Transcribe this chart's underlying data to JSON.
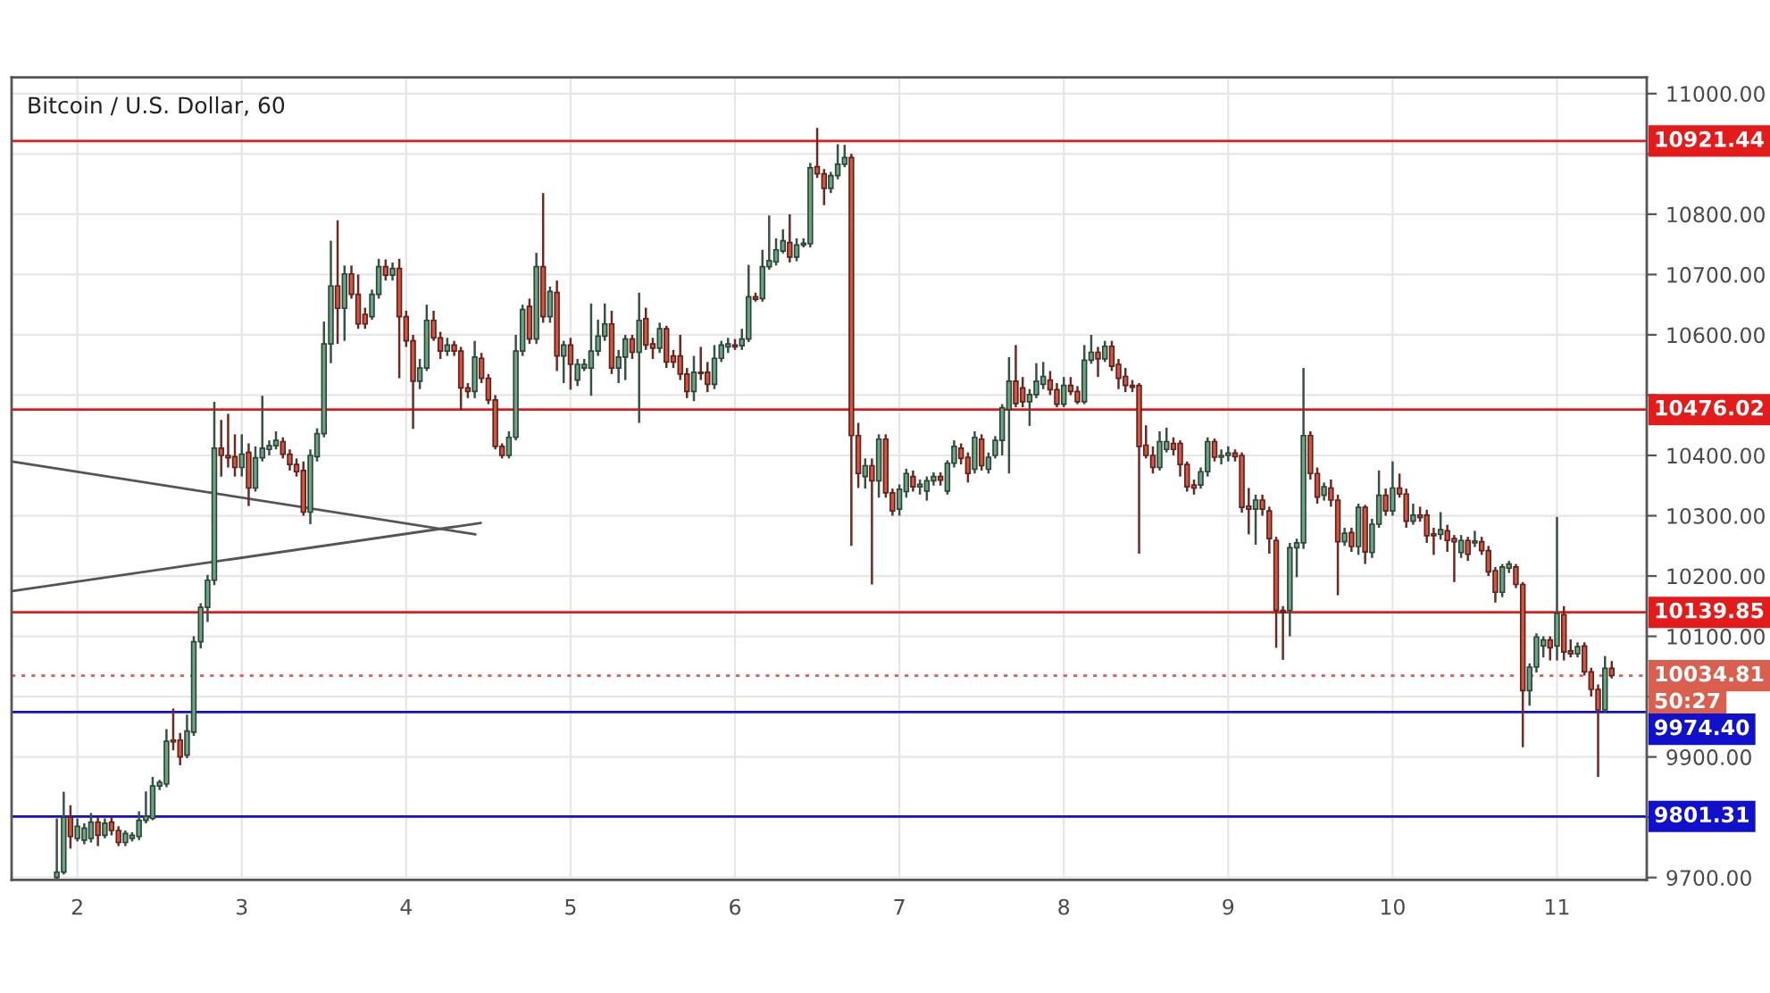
{
  "chart_data": {
    "type": "candlestick",
    "title": "Bitcoin / U.S. Dollar, 60",
    "x": [
      1.875,
      1.917,
      1.958,
      2,
      2.042,
      2.083,
      2.125,
      2.167,
      2.208,
      2.25,
      2.292,
      2.333,
      2.375,
      2.417,
      2.458,
      2.5,
      2.542,
      2.583,
      2.625,
      2.667,
      2.708,
      2.75,
      2.792,
      2.833,
      2.875,
      2.917,
      2.958,
      3,
      3.042,
      3.083,
      3.125,
      3.167,
      3.208,
      3.25,
      3.292,
      3.333,
      3.375,
      3.417,
      3.458,
      3.5,
      3.542,
      3.583,
      3.625,
      3.667,
      3.708,
      3.75,
      3.792,
      3.833,
      3.875,
      3.917,
      3.958,
      4,
      4.042,
      4.083,
      4.125,
      4.167,
      4.208,
      4.25,
      4.292,
      4.333,
      4.375,
      4.417,
      4.458,
      4.5,
      4.542,
      4.583,
      4.625,
      4.667,
      4.708,
      4.75,
      4.792,
      4.833,
      4.875,
      4.917,
      4.958,
      5,
      5.042,
      5.083,
      5.125,
      5.167,
      5.208,
      5.25,
      5.292,
      5.333,
      5.375,
      5.417,
      5.458,
      5.5,
      5.542,
      5.583,
      5.625,
      5.667,
      5.708,
      5.75,
      5.792,
      5.833,
      5.875,
      5.917,
      5.958,
      6,
      6.042,
      6.083,
      6.125,
      6.167,
      6.208,
      6.25,
      6.292,
      6.333,
      6.375,
      6.417,
      6.458,
      6.5,
      6.542,
      6.583,
      6.625,
      6.667,
      6.708,
      6.75,
      6.792,
      6.833,
      6.875,
      6.917,
      6.958,
      7,
      7.042,
      7.083,
      7.125,
      7.167,
      7.208,
      7.25,
      7.292,
      7.333,
      7.375,
      7.417,
      7.458,
      7.5,
      7.542,
      7.583,
      7.625,
      7.667,
      7.708,
      7.75,
      7.792,
      7.833,
      7.875,
      7.917,
      7.958,
      8,
      8.042,
      8.083,
      8.125,
      8.167,
      8.208,
      8.25,
      8.292,
      8.333,
      8.375,
      8.417,
      8.458,
      8.5,
      8.542,
      8.583,
      8.625,
      8.667,
      8.708,
      8.75,
      8.792,
      8.833,
      8.875,
      8.917,
      8.958,
      9,
      9.042,
      9.083,
      9.125,
      9.167,
      9.208,
      9.25,
      9.292,
      9.333,
      9.375,
      9.417,
      9.458,
      9.5,
      9.542,
      9.583,
      9.625,
      9.667,
      9.708,
      9.75,
      9.792,
      9.833,
      9.875,
      9.917,
      9.958,
      10,
      10.042,
      10.083,
      10.125,
      10.167,
      10.208,
      10.25,
      10.292,
      10.333,
      10.375,
      10.417,
      10.458,
      10.5,
      10.542,
      10.583,
      10.625,
      10.667,
      10.708,
      10.75,
      10.792,
      10.833,
      10.875,
      10.917,
      10.958,
      11,
      11.042,
      11.083,
      11.125,
      11.167,
      11.208,
      11.25,
      11.292,
      11.333
    ],
    "ohlc": [
      [
        9700,
        9798,
        9698,
        9709
      ],
      [
        9709,
        9842,
        9705,
        9800
      ],
      [
        9800,
        9820,
        9748,
        9768
      ],
      [
        9765,
        9798,
        9760,
        9785
      ],
      [
        9762,
        9790,
        9755,
        9782
      ],
      [
        9765,
        9807,
        9758,
        9792
      ],
      [
        9792,
        9800,
        9752,
        9770
      ],
      [
        9770,
        9798,
        9765,
        9790
      ],
      [
        9792,
        9800,
        9770,
        9778
      ],
      [
        9778,
        9785,
        9752,
        9758
      ],
      [
        9758,
        9778,
        9752,
        9773
      ],
      [
        9765,
        9775,
        9760,
        9770
      ],
      [
        9768,
        9810,
        9762,
        9795
      ],
      [
        9795,
        9843,
        9790,
        9802
      ],
      [
        9798,
        9867,
        9795,
        9852
      ],
      [
        9852,
        9862,
        9845,
        9858
      ],
      [
        9855,
        9946,
        9850,
        9926
      ],
      [
        9928,
        9980,
        9911,
        9925
      ],
      [
        9928,
        9940,
        9886,
        9900
      ],
      [
        9903,
        9970,
        9898,
        9943
      ],
      [
        9941,
        10100,
        9935,
        10091
      ],
      [
        10091,
        10155,
        10080,
        10148
      ],
      [
        10148,
        10202,
        10124,
        10193
      ],
      [
        10193,
        10489,
        10185,
        10412
      ],
      [
        10412,
        10459,
        10365,
        10400
      ],
      [
        10400,
        10469,
        10380,
        10396
      ],
      [
        10398,
        10435,
        10365,
        10380
      ],
      [
        10380,
        10435,
        10365,
        10402
      ],
      [
        10405,
        10420,
        10316,
        10346
      ],
      [
        10346,
        10415,
        10340,
        10396
      ],
      [
        10396,
        10499,
        10390,
        10412
      ],
      [
        10410,
        10425,
        10400,
        10416
      ],
      [
        10416,
        10440,
        10410,
        10425
      ],
      [
        10423,
        10430,
        10395,
        10402
      ],
      [
        10402,
        10410,
        10375,
        10385
      ],
      [
        10385,
        10395,
        10365,
        10373
      ],
      [
        10375,
        10390,
        10300,
        10306
      ],
      [
        10306,
        10410,
        10286,
        10400
      ],
      [
        10398,
        10445,
        10390,
        10436
      ],
      [
        10436,
        10622,
        10430,
        10585
      ],
      [
        10585,
        10756,
        10553,
        10681
      ],
      [
        10681,
        10790,
        10585,
        10644
      ],
      [
        10644,
        10715,
        10590,
        10701
      ],
      [
        10701,
        10715,
        10660,
        10667
      ],
      [
        10667,
        10700,
        10610,
        10618
      ],
      [
        10634,
        10645,
        10610,
        10618
      ],
      [
        10630,
        10675,
        10625,
        10667
      ],
      [
        10667,
        10726,
        10660,
        10713
      ],
      [
        10713,
        10725,
        10690,
        10699
      ],
      [
        10699,
        10720,
        10690,
        10710
      ],
      [
        10710,
        10726,
        10528,
        10630
      ],
      [
        10630,
        10640,
        10580,
        10590
      ],
      [
        10590,
        10600,
        10444,
        10523
      ],
      [
        10523,
        10560,
        10510,
        10545
      ],
      [
        10545,
        10650,
        10540,
        10624
      ],
      [
        10624,
        10640,
        10590,
        10595
      ],
      [
        10595,
        10605,
        10560,
        10573
      ],
      [
        10573,
        10595,
        10565,
        10583
      ],
      [
        10583,
        10590,
        10565,
        10573
      ],
      [
        10573,
        10580,
        10474,
        10512
      ],
      [
        10512,
        10520,
        10495,
        10506
      ],
      [
        10506,
        10590,
        10495,
        10563
      ],
      [
        10561,
        10570,
        10520,
        10528
      ],
      [
        10528,
        10535,
        10485,
        10492
      ],
      [
        10492,
        10500,
        10410,
        10415
      ],
      [
        10415,
        10420,
        10395,
        10400
      ],
      [
        10400,
        10440,
        10395,
        10430
      ],
      [
        10430,
        10600,
        10425,
        10573
      ],
      [
        10573,
        10650,
        10565,
        10642
      ],
      [
        10647,
        10660,
        10585,
        10593
      ],
      [
        10593,
        10736,
        10585,
        10713
      ],
      [
        10713,
        10835,
        10620,
        10630
      ],
      [
        10630,
        10680,
        10620,
        10672
      ],
      [
        10670,
        10690,
        10540,
        10565
      ],
      [
        10565,
        10590,
        10520,
        10583
      ],
      [
        10583,
        10595,
        10509,
        10551
      ],
      [
        10525,
        10560,
        10515,
        10551
      ],
      [
        10545,
        10560,
        10540,
        10551
      ],
      [
        10545,
        10652,
        10499,
        10573
      ],
      [
        10573,
        10625,
        10565,
        10598
      ],
      [
        10598,
        10652,
        10590,
        10618
      ],
      [
        10618,
        10640,
        10535,
        10545
      ],
      [
        10545,
        10575,
        10520,
        10563
      ],
      [
        10563,
        10600,
        10525,
        10593
      ],
      [
        10593,
        10600,
        10560,
        10571
      ],
      [
        10571,
        10670,
        10454,
        10624
      ],
      [
        10627,
        10645,
        10575,
        10583
      ],
      [
        10585,
        10595,
        10560,
        10578
      ],
      [
        10578,
        10620,
        10570,
        10610
      ],
      [
        10610,
        10615,
        10545,
        10555
      ],
      [
        10565,
        10575,
        10545,
        10555
      ],
      [
        10565,
        10600,
        10525,
        10535
      ],
      [
        10535,
        10545,
        10495,
        10506
      ],
      [
        10506,
        10565,
        10490,
        10538
      ],
      [
        10538,
        10580,
        10525,
        10536
      ],
      [
        10538,
        10555,
        10505,
        10518
      ],
      [
        10518,
        10583,
        10510,
        10561
      ],
      [
        10561,
        10590,
        10555,
        10583
      ],
      [
        10580,
        10595,
        10570,
        10585
      ],
      [
        10583,
        10593,
        10575,
        10580
      ],
      [
        10582,
        10610,
        10575,
        10593
      ],
      [
        10593,
        10716,
        10588,
        10663
      ],
      [
        10663,
        10670,
        10655,
        10659
      ],
      [
        10660,
        10741,
        10655,
        10713
      ],
      [
        10713,
        10798,
        10708,
        10723
      ],
      [
        10721,
        10760,
        10715,
        10741
      ],
      [
        10739,
        10775,
        10735,
        10756
      ],
      [
        10753,
        10800,
        10720,
        10729
      ],
      [
        10729,
        10760,
        10722,
        10749
      ],
      [
        10749,
        10760,
        10745,
        10752
      ],
      [
        10751,
        10885,
        10745,
        10877
      ],
      [
        10879,
        10943,
        10860,
        10867
      ],
      [
        10867,
        10875,
        10815,
        10843
      ],
      [
        10843,
        10870,
        10835,
        10864
      ],
      [
        10864,
        10916,
        10858,
        10883
      ],
      [
        10883,
        10915,
        10878,
        10894
      ],
      [
        10894,
        10900,
        10250,
        10433
      ],
      [
        10433,
        10454,
        10346,
        10370
      ],
      [
        10365,
        10395,
        10345,
        10383
      ],
      [
        10383,
        10395,
        10186,
        10358
      ],
      [
        10358,
        10435,
        10330,
        10427
      ],
      [
        10427,
        10435,
        10330,
        10338
      ],
      [
        10338,
        10345,
        10300,
        10308
      ],
      [
        10311,
        10352,
        10300,
        10344
      ],
      [
        10340,
        10378,
        10330,
        10370
      ],
      [
        10365,
        10375,
        10340,
        10348
      ],
      [
        10348,
        10360,
        10335,
        10352
      ],
      [
        10341,
        10365,
        10325,
        10358
      ],
      [
        10358,
        10372,
        10350,
        10365
      ],
      [
        10365,
        10372,
        10350,
        10359
      ],
      [
        10341,
        10392,
        10335,
        10387
      ],
      [
        10387,
        10425,
        10380,
        10415
      ],
      [
        10412,
        10420,
        10385,
        10395
      ],
      [
        10397,
        10405,
        10355,
        10370
      ],
      [
        10377,
        10440,
        10370,
        10430
      ],
      [
        10427,
        10435,
        10375,
        10383
      ],
      [
        10377,
        10405,
        10370,
        10397
      ],
      [
        10400,
        10432,
        10395,
        10425
      ],
      [
        10425,
        10485,
        10400,
        10479
      ],
      [
        10476,
        10563,
        10370,
        10523
      ],
      [
        10523,
        10583,
        10480,
        10486
      ],
      [
        10512,
        10530,
        10480,
        10489
      ],
      [
        10489,
        10510,
        10449,
        10501
      ],
      [
        10501,
        10553,
        10495,
        10523
      ],
      [
        10518,
        10555,
        10510,
        10531
      ],
      [
        10525,
        10540,
        10500,
        10509
      ],
      [
        10509,
        10520,
        10480,
        10485
      ],
      [
        10485,
        10530,
        10480,
        10516
      ],
      [
        10516,
        10530,
        10500,
        10506
      ],
      [
        10506,
        10515,
        10485,
        10489
      ],
      [
        10489,
        10583,
        10485,
        10558
      ],
      [
        10558,
        10600,
        10552,
        10571
      ],
      [
        10571,
        10580,
        10530,
        10560
      ],
      [
        10560,
        10590,
        10555,
        10581
      ],
      [
        10581,
        10590,
        10540,
        10548
      ],
      [
        10551,
        10560,
        10510,
        10528
      ],
      [
        10531,
        10545,
        10505,
        10516
      ],
      [
        10516,
        10525,
        10505,
        10513
      ],
      [
        10516,
        10520,
        10237,
        10415
      ],
      [
        10417,
        10450,
        10395,
        10400
      ],
      [
        10400,
        10415,
        10370,
        10380
      ],
      [
        10380,
        10440,
        10375,
        10423
      ],
      [
        10410,
        10446,
        10405,
        10423
      ],
      [
        10420,
        10430,
        10400,
        10410
      ],
      [
        10420,
        10425,
        10365,
        10385
      ],
      [
        10385,
        10390,
        10340,
        10348
      ],
      [
        10351,
        10360,
        10335,
        10346
      ],
      [
        10351,
        10380,
        10345,
        10373
      ],
      [
        10373,
        10430,
        10365,
        10423
      ],
      [
        10423,
        10428,
        10390,
        10397
      ],
      [
        10397,
        10410,
        10385,
        10400
      ],
      [
        10400,
        10415,
        10390,
        10404
      ],
      [
        10404,
        10410,
        10390,
        10398
      ],
      [
        10400,
        10405,
        10305,
        10314
      ],
      [
        10316,
        10346,
        10269,
        10311
      ],
      [
        10311,
        10335,
        10252,
        10326
      ],
      [
        10326,
        10335,
        10300,
        10311
      ],
      [
        10308,
        10315,
        10237,
        10262
      ],
      [
        10259,
        10265,
        10081,
        10143
      ],
      [
        10143,
        10150,
        10061,
        10140
      ],
      [
        10143,
        10255,
        10100,
        10247
      ],
      [
        10247,
        10262,
        10198,
        10255
      ],
      [
        10255,
        10545,
        10245,
        10433
      ],
      [
        10433,
        10440,
        10360,
        10370
      ],
      [
        10370,
        10380,
        10320,
        10331
      ],
      [
        10334,
        10355,
        10325,
        10348
      ],
      [
        10346,
        10360,
        10315,
        10326
      ],
      [
        10326,
        10335,
        10168,
        10257
      ],
      [
        10257,
        10280,
        10250,
        10271
      ],
      [
        10272,
        10280,
        10240,
        10249
      ],
      [
        10249,
        10320,
        10235,
        10314
      ],
      [
        10314,
        10318,
        10220,
        10240
      ],
      [
        10239,
        10295,
        10230,
        10286
      ],
      [
        10286,
        10375,
        10280,
        10334
      ],
      [
        10334,
        10345,
        10300,
        10308
      ],
      [
        10308,
        10390,
        10300,
        10346
      ],
      [
        10346,
        10370,
        10330,
        10336
      ],
      [
        10336,
        10345,
        10280,
        10291
      ],
      [
        10291,
        10320,
        10285,
        10301
      ],
      [
        10301,
        10315,
        10290,
        10297
      ],
      [
        10301,
        10310,
        10255,
        10267
      ],
      [
        10270,
        10280,
        10235,
        10267
      ],
      [
        10269,
        10306,
        10260,
        10277
      ],
      [
        10275,
        10285,
        10240,
        10259
      ],
      [
        10262,
        10268,
        10190,
        10257
      ],
      [
        10239,
        10268,
        10230,
        10259
      ],
      [
        10259,
        10265,
        10225,
        10236
      ],
      [
        10255,
        10275,
        10248,
        10258
      ],
      [
        10257,
        10265,
        10235,
        10242
      ],
      [
        10242,
        10250,
        10200,
        10207
      ],
      [
        10209,
        10215,
        10156,
        10173
      ],
      [
        10173,
        10220,
        10165,
        10215
      ],
      [
        10213,
        10225,
        10205,
        10220
      ],
      [
        10215,
        10220,
        10180,
        10186
      ],
      [
        10186,
        10190,
        9916,
        10010
      ],
      [
        10010,
        10055,
        9985,
        10049
      ],
      [
        10049,
        10105,
        10040,
        10099
      ],
      [
        10084,
        10100,
        10065,
        10094
      ],
      [
        10094,
        10100,
        10060,
        10081
      ],
      [
        10084,
        10298,
        10060,
        10138
      ],
      [
        10136,
        10150,
        10060,
        10074
      ],
      [
        10076,
        10095,
        10065,
        10071
      ],
      [
        10071,
        10090,
        10065,
        10083
      ],
      [
        10084,
        10090,
        10035,
        10041
      ],
      [
        10041,
        10048,
        10000,
        10012
      ],
      [
        10012,
        10020,
        9867,
        9978
      ],
      [
        9978,
        10067,
        9974,
        10047
      ],
      [
        10047,
        10059,
        10030,
        10035
      ]
    ],
    "colors": [
      "#6ba583",
      "#6ba583",
      "#d75442",
      "#6ba583",
      "#6ba583",
      "#6ba583",
      "#d75442",
      "#6ba583",
      "#d75442",
      "#d75442",
      "#6ba583",
      "#6ba583",
      "#6ba583",
      "#6ba583",
      "#6ba583",
      "#6ba583",
      "#6ba583",
      "#d75442",
      "#d75442",
      "#6ba583",
      "#6ba583",
      "#6ba583",
      "#6ba583",
      "#6ba583",
      "#d75442",
      "#d75442",
      "#d75442",
      "#6ba583",
      "#d75442",
      "#6ba583",
      "#6ba583",
      "#6ba583",
      "#6ba583",
      "#d75442",
      "#d75442",
      "#d75442",
      "#d75442",
      "#6ba583",
      "#6ba583",
      "#6ba583",
      "#6ba583",
      "#d75442",
      "#6ba583",
      "#d75442",
      "#d75442",
      "#d75442",
      "#6ba583",
      "#6ba583",
      "#d75442",
      "#6ba583",
      "#d75442",
      "#d75442",
      "#d75442",
      "#6ba583",
      "#6ba583",
      "#d75442",
      "#d75442",
      "#6ba583",
      "#d75442",
      "#d75442",
      "#d75442",
      "#6ba583",
      "#d75442",
      "#d75442",
      "#d75442",
      "#d75442",
      "#6ba583",
      "#6ba583",
      "#6ba583",
      "#d75442",
      "#6ba583",
      "#d75442",
      "#6ba583",
      "#d75442",
      "#6ba583",
      "#d75442",
      "#6ba583",
      "#6ba583",
      "#6ba583",
      "#6ba583",
      "#6ba583",
      "#d75442",
      "#6ba583",
      "#6ba583",
      "#d75442",
      "#6ba583",
      "#d75442",
      "#d75442",
      "#6ba583",
      "#d75442",
      "#d75442",
      "#d75442",
      "#d75442",
      "#6ba583",
      "#d75442",
      "#d75442",
      "#6ba583",
      "#6ba583",
      "#6ba583",
      "#d75442",
      "#6ba583",
      "#6ba583",
      "#d75442",
      "#6ba583",
      "#6ba583",
      "#6ba583",
      "#6ba583",
      "#d75442",
      "#6ba583",
      "#6ba583",
      "#6ba583",
      "#d75442",
      "#d75442",
      "#6ba583",
      "#6ba583",
      "#6ba583",
      "#d75442",
      "#d75442",
      "#6ba583",
      "#d75442",
      "#6ba583",
      "#d75442",
      "#d75442",
      "#6ba583",
      "#6ba583",
      "#d75442",
      "#6ba583",
      "#6ba583",
      "#6ba583",
      "#d75442",
      "#6ba583",
      "#6ba583",
      "#d75442",
      "#d75442",
      "#6ba583",
      "#d75442",
      "#6ba583",
      "#6ba583",
      "#6ba583",
      "#6ba583",
      "#d75442",
      "#d75442",
      "#6ba583",
      "#6ba583",
      "#6ba583",
      "#d75442",
      "#d75442",
      "#6ba583",
      "#d75442",
      "#d75442",
      "#6ba583",
      "#6ba583",
      "#d75442",
      "#6ba583",
      "#d75442",
      "#d75442",
      "#d75442",
      "#d75442",
      "#d75442",
      "#d75442",
      "#d75442",
      "#6ba583",
      "#6ba583",
      "#d75442",
      "#d75442",
      "#d75442",
      "#d75442",
      "#6ba583",
      "#6ba583",
      "#d75442",
      "#6ba583",
      "#6ba583",
      "#d75442",
      "#d75442",
      "#d75442",
      "#6ba583",
      "#d75442",
      "#d75442",
      "#d75442",
      "#d75442",
      "#6ba583",
      "#6ba583",
      "#6ba583",
      "#d75442",
      "#d75442",
      "#6ba583",
      "#d75442",
      "#d75442",
      "#6ba583",
      "#d75442",
      "#6ba583",
      "#d75442",
      "#6ba583",
      "#6ba583",
      "#d75442",
      "#6ba583",
      "#d75442",
      "#d75442",
      "#6ba583",
      "#d75442",
      "#d75442",
      "#d75442",
      "#6ba583",
      "#d75442",
      "#d75442",
      "#6ba583",
      "#d75442",
      "#6ba583",
      "#d75442",
      "#d75442",
      "#d75442",
      "#6ba583",
      "#6ba583",
      "#d75442",
      "#d75442",
      "#6ba583",
      "#6ba583",
      "#6ba583",
      "#d75442",
      "#6ba583",
      "#d75442",
      "#d75442",
      "#6ba583",
      "#d75442",
      "#d75442",
      "#d75442",
      "#6ba583",
      "#d75442"
    ],
    "series": [
      {
        "type": "line",
        "color": "#555555",
        "x": [
          1.604,
          4.421
        ],
        "values": [
          10390,
          10269
        ]
      },
      {
        "type": "line",
        "color": "#555555",
        "x": [
          1.604,
          4.454
        ],
        "values": [
          10175,
          10288
        ]
      }
    ],
    "xlim": [
      1.6,
      11.546
    ],
    "xticks": [
      2,
      3,
      4,
      5,
      6,
      7,
      8,
      9,
      10,
      11
    ],
    "ylim": [
      9696,
      11027
    ],
    "yticks": [
      {
        "value": 9700,
        "label": "9700.00"
      },
      {
        "value": 9800,
        "label": null
      },
      {
        "value": 9900,
        "label": "9900.00"
      },
      {
        "value": 10000,
        "label": null
      },
      {
        "value": 10100,
        "label": "10100.00"
      },
      {
        "value": 10200,
        "label": "10200.00"
      },
      {
        "value": 10300,
        "label": "10300.00"
      },
      {
        "value": 10400,
        "label": "10400.00"
      },
      {
        "value": 10500,
        "label": null
      },
      {
        "value": 10600,
        "label": "10600.00"
      },
      {
        "value": 10700,
        "label": "10700.00"
      },
      {
        "value": 10800,
        "label": "10800.00"
      },
      {
        "value": 10900,
        "label": null
      },
      {
        "value": 11000,
        "label": "11000.00"
      }
    ],
    "grid": true,
    "ref_lines": [
      {
        "axis": "y",
        "value": 10921.44,
        "label": "10921.44",
        "color": "#e31b1b"
      },
      {
        "axis": "y",
        "value": 10476.02,
        "label": "10476.02",
        "color": "#e31b1b"
      },
      {
        "axis": "y",
        "value": 10139.85,
        "label": "10139.85",
        "color": "#e31b1b"
      },
      {
        "axis": "y",
        "value": 10034.81,
        "label": "10034.81",
        "color": "#d9604e",
        "line_style": "dotted"
      },
      {
        "axis": "y",
        "value": 9974.4,
        "label": "9974.40",
        "color": "#1111cc"
      },
      {
        "axis": "y",
        "value": 9801.31,
        "label": "9801.31",
        "color": "#1111cc"
      }
    ],
    "annotations": [
      "50:27"
    ]
  }
}
